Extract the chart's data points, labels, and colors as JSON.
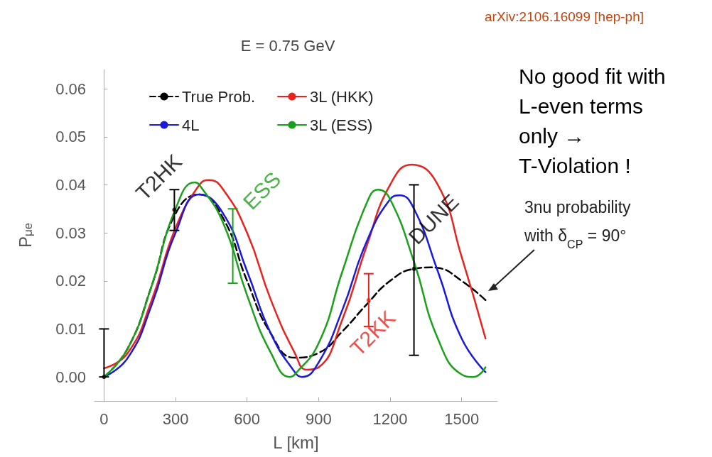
{
  "chart_data": {
    "type": "line",
    "title": "E = 0.75 GeV",
    "xlabel": "L [km]",
    "ylabel": "P$_{μe}$",
    "xlim": [
      -40,
      1650
    ],
    "ylim": [
      -0.005,
      0.064
    ],
    "xticks": [
      0,
      300,
      600,
      900,
      1200,
      1500
    ],
    "yticks": [
      {
        "value": 0,
        "label": "0.00"
      },
      0.01,
      0.02,
      0.03,
      0.04,
      0.05,
      0.06
    ],
    "grid": false,
    "legend": "top left",
    "marker": "none",
    "series": [
      {
        "name": "True Prob.",
        "color": "#000000",
        "line_style": "dashed",
        "x": [
          0,
          100,
          200,
          300,
          400,
          500,
          600,
          700,
          800,
          900,
          1000,
          1100,
          1200,
          1300,
          1370,
          1400,
          1500,
          1600
        ],
        "values": [
          0,
          0.006,
          0.019,
          0.034,
          0.038,
          0.033,
          0.02,
          0.009,
          0.004,
          0.005,
          0.0095,
          0.015,
          0.02,
          0.0225,
          0.0228,
          0.0227,
          0.02,
          0.016
        ]
      },
      {
        "name": "3L (HKK)",
        "color": "#e8231f",
        "x": [
          0,
          100,
          200,
          300,
          400,
          440,
          500,
          600,
          700,
          800,
          850,
          900,
          1000,
          1100,
          1200,
          1290,
          1400,
          1500,
          1600
        ],
        "values": [
          0.0018,
          0.005,
          0.016,
          0.031,
          0.04,
          0.041,
          0.039,
          0.03,
          0.016,
          0.005,
          0.0015,
          0.002,
          0.012,
          0.027,
          0.04,
          0.0442,
          0.04,
          0.025,
          0.008
        ]
      },
      {
        "name": "4L",
        "color": "#1a1adc",
        "x": [
          0,
          100,
          200,
          300,
          400,
          500,
          600,
          700,
          800,
          830,
          900,
          1000,
          1100,
          1200,
          1240,
          1300,
          1400,
          1500,
          1600
        ],
        "values": [
          0,
          0.004,
          0.015,
          0.03,
          0.038,
          0.034,
          0.022,
          0.009,
          0.001,
          0,
          0.003,
          0.014,
          0.028,
          0.037,
          0.0378,
          0.035,
          0.022,
          0.008,
          0.001
        ]
      },
      {
        "name": "3L (ESS)",
        "color": "#1aa01a",
        "x": [
          0,
          100,
          200,
          300,
          380,
          400,
          500,
          600,
          700,
          780,
          800,
          900,
          1000,
          1100,
          1150,
          1200,
          1300,
          1400,
          1500,
          1550,
          1600
        ],
        "values": [
          0,
          0.006,
          0.019,
          0.035,
          0.0405,
          0.04,
          0.032,
          0.017,
          0.005,
          0,
          0.0005,
          0.007,
          0.022,
          0.036,
          0.039,
          0.037,
          0.024,
          0.008,
          0.0005,
          0,
          0.002
        ]
      },
      {
        "type": "scatter",
        "marker": "circle",
        "x": [
          0,
          295,
          540,
          1110,
          1300
        ],
        "values": [
          0,
          0.0348,
          0.0273,
          0.016,
          0.0225
        ],
        "errors": [
          [
            0,
            0.01
          ],
          [
            0.0305,
            0.039
          ],
          [
            0.0195,
            0.035
          ],
          [
            0.0105,
            0.0215
          ],
          [
            0.0045,
            0.04
          ]
        ],
        "colors": [
          "#000000",
          "#000000",
          "#1aa01a",
          "#e8231f",
          "#000000"
        ],
        "value_labels": [
          null,
          "T2HK",
          "ESS",
          "T2KK",
          "DUNE"
        ]
      }
    ],
    "annotations": [
      "arXiv:2106.16099 [hep-ph]",
      "No good fit with L-even terms only → T-Violation !",
      "3nu probability with δ$_{CP}$ = 90°"
    ]
  }
}
